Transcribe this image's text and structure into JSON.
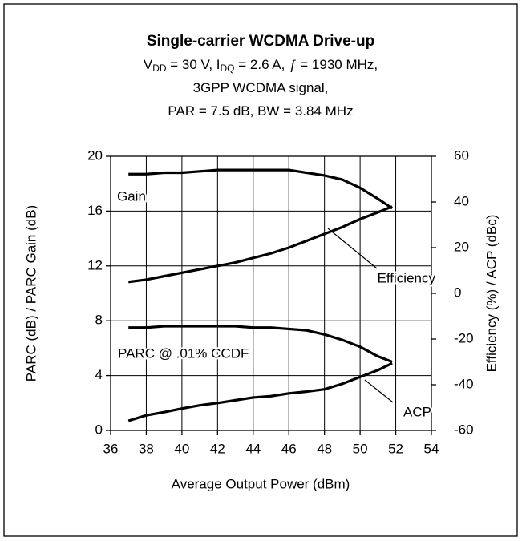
{
  "chart_data": {
    "type": "line",
    "title": "Single-carrier WCDMA Drive-up",
    "subtitle": [
      [
        {
          "text": "V"
        },
        {
          "text": "DD",
          "sub": true
        },
        {
          "text": " = 30 V, I"
        },
        {
          "text": "DQ",
          "sub": true
        },
        {
          "text": " = 2.6 A, "
        },
        {
          "text": "ƒ",
          "italic": true
        },
        {
          "text": " = 1930 MHz,"
        }
      ],
      [
        {
          "text": "3GPP WCDMA signal,"
        }
      ],
      [
        {
          "text": "PAR = 7.5 dB, BW = 3.84 MHz"
        }
      ]
    ],
    "xlabel": "Average Output Power (dBm)",
    "ylabel": "PARC (dB)  / PARC Gain (dB)",
    "y2label": "Efficiency (%) / ACP (dBc)",
    "x": [
      37,
      38,
      39,
      40,
      41,
      42,
      43,
      44,
      45,
      46,
      47,
      48,
      49,
      50,
      51,
      51.8
    ],
    "series": [
      {
        "name": "Gain",
        "color": "#000000",
        "values": [
          18.7,
          18.7,
          18.8,
          18.8,
          18.9,
          19.0,
          19.0,
          19.0,
          19.0,
          19.0,
          18.8,
          18.6,
          18.3,
          17.7,
          16.9,
          16.2
        ]
      },
      {
        "name": "Efficiency",
        "color": "#000000",
        "axis": "y2",
        "values": [
          5,
          6,
          7.5,
          9,
          10.5,
          12,
          13.5,
          15.5,
          17.5,
          20,
          23,
          26,
          29,
          32.5,
          35.5,
          38
        ]
      },
      {
        "name": "PARC @ .01%  CCDF",
        "color": "#000000",
        "values": [
          7.5,
          7.5,
          7.6,
          7.6,
          7.6,
          7.6,
          7.6,
          7.5,
          7.5,
          7.4,
          7.3,
          7.0,
          6.6,
          6.1,
          5.4,
          5.0
        ]
      },
      {
        "name": "ACP",
        "color": "#000000",
        "axis": "y2",
        "values": [
          -55.8,
          -53.4,
          -52,
          -50.4,
          -49,
          -48,
          -46.8,
          -45.6,
          -45,
          -43.8,
          -43,
          -42,
          -39.6,
          -36.6,
          -33.6,
          -30.6
        ]
      }
    ],
    "xlim": [
      36,
      54
    ],
    "xticks": [
      36,
      38,
      40,
      42,
      44,
      46,
      48,
      50,
      52,
      54
    ],
    "ylim": [
      0,
      20
    ],
    "yticks": [
      0,
      4,
      8,
      12,
      16,
      20
    ],
    "y2lim": [
      -60,
      60
    ],
    "y2ticks": [
      -60,
      -40,
      -20,
      0,
      20,
      40,
      60
    ],
    "grid": true
  }
}
